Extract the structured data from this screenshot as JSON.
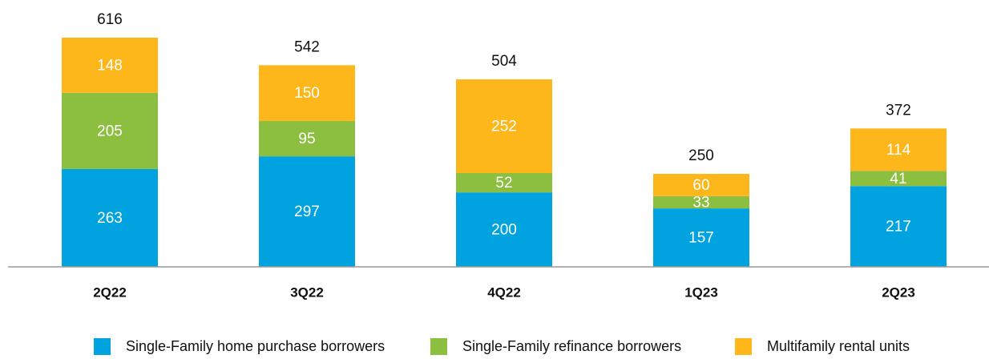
{
  "chart_data": {
    "type": "stacked_bar",
    "categories": [
      "2Q22",
      "3Q22",
      "4Q22",
      "1Q23",
      "2Q23"
    ],
    "series": [
      {
        "name": "Single-Family home purchase borrowers",
        "color": "#00a3e0",
        "values": [
          263,
          297,
          200,
          157,
          217
        ]
      },
      {
        "name": "Single-Family refinance borrowers",
        "color": "#8cbf3f",
        "values": [
          205,
          95,
          52,
          33,
          41
        ]
      },
      {
        "name": "Multifamily rental units",
        "color": "#fdb71a",
        "values": [
          148,
          150,
          252,
          60,
          114
        ]
      }
    ],
    "totals": [
      616,
      542,
      504,
      250,
      372
    ],
    "ylim": [
      0,
      660
    ],
    "legend": "bottom"
  }
}
